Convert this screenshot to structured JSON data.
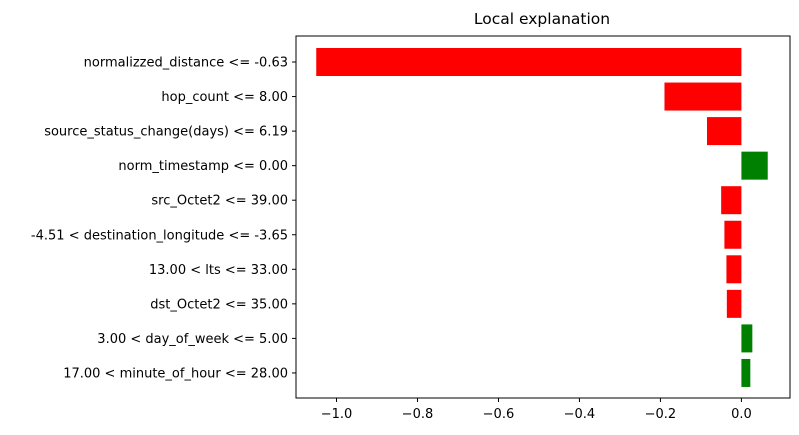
{
  "chart_data": {
    "type": "bar",
    "orientation": "horizontal",
    "title": "Local explanation",
    "xlabel": "",
    "ylabel": "",
    "xlim": [
      -1.1,
      0.12
    ],
    "xticks": [
      -1.0,
      -0.8,
      -0.6,
      -0.4,
      -0.2,
      0.0
    ],
    "xtick_labels": [
      "−1.0",
      "−0.8",
      "−0.6",
      "−0.4",
      "−0.2",
      "0.0"
    ],
    "grid": false,
    "legend": "none",
    "categories": [
      "normalizzed_distance <= -0.63",
      "hop_count <= 8.00",
      "source_status_change(days) <= 6.19",
      "norm_timestamp <= 0.00",
      "src_Octet2 <= 39.00",
      "-4.51 < destination_longitude <= -3.65",
      "13.00 < lts <= 33.00",
      "dst_Octet2 <= 35.00",
      "3.00 < day_of_week <= 5.00",
      "17.00 < minute_of_hour <= 28.00"
    ],
    "values": [
      -1.05,
      -0.19,
      -0.085,
      0.065,
      -0.05,
      -0.042,
      -0.037,
      -0.036,
      0.027,
      0.022
    ],
    "colors": {
      "negative": "#ff0000",
      "positive": "#008000"
    }
  }
}
